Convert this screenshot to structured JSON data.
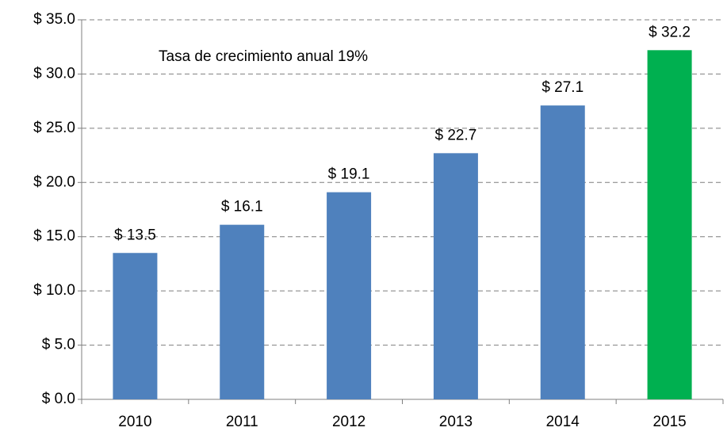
{
  "chart_data": {
    "type": "bar",
    "annotation": "Tasa de crecimiento anual 19%",
    "categories": [
      "2010",
      "2011",
      "2012",
      "2013",
      "2014",
      "2015"
    ],
    "values": [
      13.5,
      16.1,
      19.1,
      22.7,
      27.1,
      32.2
    ],
    "value_labels": [
      "$ 13.5",
      "$ 16.1",
      "$ 19.1",
      "$ 22.7",
      "$ 27.1",
      "$ 32.2"
    ],
    "colors": [
      "#4f81bd",
      "#4f81bd",
      "#4f81bd",
      "#4f81bd",
      "#4f81bd",
      "#00b050"
    ],
    "ylim": [
      0,
      35
    ],
    "yticks": [
      {
        "value": 0,
        "label": "$ 0.0"
      },
      {
        "value": 5,
        "label": "$ 5.0"
      },
      {
        "value": 10,
        "label": "$ 10.0"
      },
      {
        "value": 15,
        "label": "$ 15.0"
      },
      {
        "value": 20,
        "label": "$ 20.0"
      },
      {
        "value": 25,
        "label": "$ 25.0"
      },
      {
        "value": 30,
        "label": "$ 30.0"
      },
      {
        "value": 35,
        "label": "$ 35.0"
      }
    ],
    "grid": true
  }
}
